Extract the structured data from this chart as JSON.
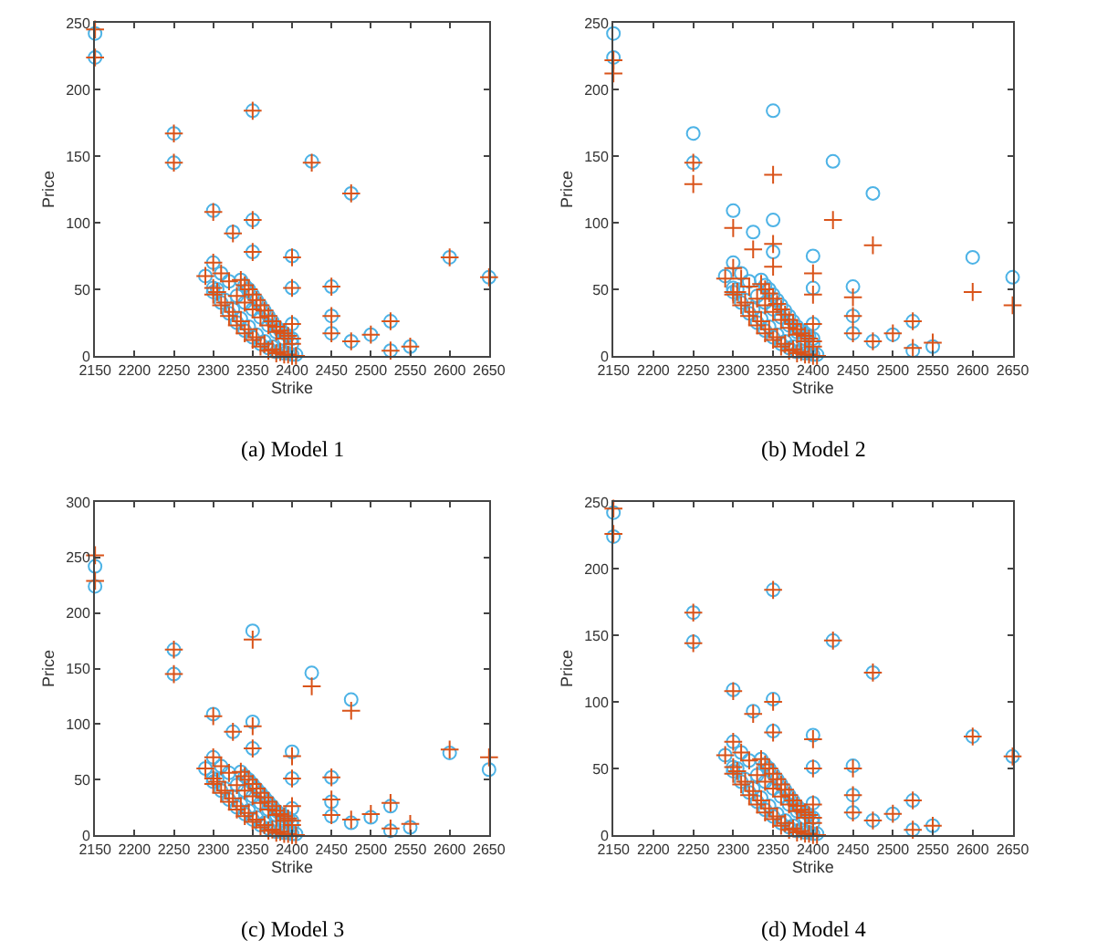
{
  "chart_data": [
    {
      "type": "scatter",
      "title": "(a) Model 1",
      "xlabel": "Strike",
      "ylabel": "Price",
      "xlim": [
        2150,
        2650
      ],
      "xticks": [
        2150,
        2200,
        2250,
        2300,
        2350,
        2400,
        2450,
        2500,
        2550,
        2600,
        2650
      ],
      "ylim": [
        0,
        250
      ],
      "yticks": [
        0,
        50,
        100,
        150,
        200,
        250
      ],
      "x": [
        2150,
        2150,
        2250,
        2250,
        2290,
        2300,
        2300,
        2300,
        2310,
        2320,
        2325,
        2350,
        2350,
        2350,
        2400,
        2400,
        2400,
        2425,
        2450,
        2450,
        2450,
        2475,
        2475,
        2500,
        2525,
        2525,
        2550,
        2600,
        2650,
        2335,
        2340,
        2345,
        2350,
        2355,
        2360,
        2365,
        2370,
        2375,
        2380,
        2385,
        2390,
        2395,
        2400,
        2330,
        2340,
        2350,
        2360,
        2370,
        2380,
        2390,
        2400,
        2300,
        2310,
        2320,
        2330,
        2340,
        2350,
        2360,
        2370,
        2380,
        2390,
        2400,
        2305,
        2315,
        2325,
        2335,
        2345,
        2355,
        2365,
        2375,
        2385,
        2395,
        2405
      ],
      "series": [
        {
          "color": "#4db3e6",
          "marker": "circle",
          "values": [
            242,
            224,
            167,
            145,
            60,
            109,
            70,
            51,
            62,
            56,
            93,
            184,
            102,
            78,
            75,
            51,
            24,
            146,
            52,
            30,
            17,
            122,
            11,
            16,
            26,
            4,
            7,
            74,
            59,
            57,
            53,
            50,
            46,
            42,
            38,
            34,
            30,
            26,
            22,
            19,
            17,
            15,
            13,
            45,
            40,
            35,
            29,
            23,
            18,
            13,
            9,
            48,
            40,
            32,
            25,
            19,
            14,
            9,
            6,
            3,
            2,
            1,
            50,
            42,
            35,
            28,
            22,
            16,
            11,
            7,
            4,
            2,
            1
          ]
        },
        {
          "color": "#d95319",
          "marker": "cross",
          "values": [
            245,
            224,
            167,
            145,
            60,
            108,
            70,
            51,
            62,
            56,
            92,
            184,
            102,
            78,
            74,
            51,
            24,
            145,
            52,
            30,
            17,
            122,
            11,
            16,
            26,
            4,
            7,
            74,
            59,
            57,
            53,
            50,
            46,
            42,
            38,
            34,
            30,
            26,
            22,
            19,
            17,
            15,
            13,
            45,
            40,
            35,
            29,
            23,
            18,
            13,
            9,
            46,
            38,
            30,
            23,
            17,
            12,
            7,
            4,
            2,
            1,
            0,
            48,
            40,
            33,
            26,
            20,
            14,
            9,
            5,
            3,
            1,
            0
          ]
        }
      ]
    },
    {
      "type": "scatter",
      "title": "(b) Model 2",
      "xlabel": "Strike",
      "ylabel": "Price",
      "xlim": [
        2150,
        2650
      ],
      "xticks": [
        2150,
        2200,
        2250,
        2300,
        2350,
        2400,
        2450,
        2500,
        2550,
        2600,
        2650
      ],
      "ylim": [
        0,
        250
      ],
      "yticks": [
        0,
        50,
        100,
        150,
        200,
        250
      ],
      "x": [
        2150,
        2150,
        2250,
        2250,
        2290,
        2300,
        2300,
        2300,
        2310,
        2320,
        2325,
        2350,
        2350,
        2350,
        2400,
        2400,
        2400,
        2425,
        2450,
        2450,
        2450,
        2475,
        2475,
        2500,
        2525,
        2525,
        2550,
        2600,
        2650,
        2335,
        2340,
        2345,
        2350,
        2355,
        2360,
        2365,
        2370,
        2375,
        2380,
        2385,
        2390,
        2395,
        2400,
        2330,
        2340,
        2350,
        2360,
        2370,
        2380,
        2390,
        2400,
        2300,
        2310,
        2320,
        2330,
        2340,
        2350,
        2360,
        2370,
        2380,
        2390,
        2400,
        2305,
        2315,
        2325,
        2335,
        2345,
        2355,
        2365,
        2375,
        2385,
        2395,
        2405
      ],
      "series": [
        {
          "color": "#4db3e6",
          "marker": "circle",
          "values": [
            242,
            224,
            167,
            145,
            60,
            109,
            70,
            51,
            62,
            56,
            93,
            184,
            102,
            78,
            75,
            51,
            24,
            146,
            52,
            30,
            17,
            122,
            11,
            16,
            26,
            4,
            7,
            74,
            59,
            57,
            53,
            50,
            46,
            42,
            38,
            34,
            30,
            26,
            22,
            19,
            17,
            15,
            13,
            45,
            40,
            35,
            29,
            23,
            18,
            13,
            9,
            48,
            40,
            32,
            25,
            19,
            14,
            9,
            6,
            3,
            2,
            1,
            50,
            42,
            35,
            28,
            22,
            16,
            11,
            7,
            4,
            2,
            1
          ]
        },
        {
          "color": "#d95319",
          "marker": "cross",
          "values": [
            212,
            222,
            145,
            129,
            58,
            96,
            66,
            48,
            58,
            52,
            80,
            136,
            84,
            67,
            62,
            46,
            24,
            102,
            44,
            30,
            17,
            83,
            11,
            17,
            26,
            6,
            10,
            48,
            38,
            54,
            50,
            47,
            43,
            39,
            35,
            31,
            27,
            24,
            20,
            17,
            15,
            13,
            11,
            43,
            38,
            33,
            27,
            21,
            16,
            11,
            7,
            46,
            38,
            30,
            23,
            17,
            12,
            7,
            4,
            2,
            1,
            0,
            48,
            40,
            33,
            26,
            20,
            14,
            9,
            5,
            3,
            1,
            0
          ]
        }
      ]
    },
    {
      "type": "scatter",
      "title": "(c) Model 3",
      "xlabel": "Strike",
      "ylabel": "Price",
      "xlim": [
        2150,
        2650
      ],
      "xticks": [
        2150,
        2200,
        2250,
        2300,
        2350,
        2400,
        2450,
        2500,
        2550,
        2600,
        2650
      ],
      "ylim": [
        0,
        300
      ],
      "yticks": [
        0,
        50,
        100,
        150,
        200,
        250,
        300
      ],
      "x": [
        2150,
        2150,
        2250,
        2250,
        2290,
        2300,
        2300,
        2300,
        2310,
        2320,
        2325,
        2350,
        2350,
        2350,
        2400,
        2400,
        2400,
        2425,
        2450,
        2450,
        2450,
        2475,
        2475,
        2500,
        2525,
        2525,
        2550,
        2600,
        2650,
        2335,
        2340,
        2345,
        2350,
        2355,
        2360,
        2365,
        2370,
        2375,
        2380,
        2385,
        2390,
        2395,
        2400,
        2330,
        2340,
        2350,
        2360,
        2370,
        2380,
        2390,
        2400,
        2300,
        2310,
        2320,
        2330,
        2340,
        2350,
        2360,
        2370,
        2380,
        2390,
        2400,
        2305,
        2315,
        2325,
        2335,
        2345,
        2355,
        2365,
        2375,
        2385,
        2395,
        2405
      ],
      "series": [
        {
          "color": "#4db3e6",
          "marker": "circle",
          "values": [
            242,
            224,
            167,
            145,
            60,
            109,
            70,
            51,
            62,
            56,
            93,
            184,
            102,
            78,
            75,
            51,
            24,
            146,
            52,
            30,
            17,
            122,
            11,
            16,
            26,
            4,
            7,
            74,
            59,
            57,
            53,
            50,
            46,
            42,
            38,
            34,
            30,
            26,
            22,
            19,
            17,
            15,
            13,
            45,
            40,
            35,
            29,
            23,
            18,
            13,
            9,
            48,
            40,
            32,
            25,
            19,
            14,
            9,
            6,
            3,
            2,
            1,
            50,
            42,
            35,
            28,
            22,
            16,
            11,
            7,
            4,
            2,
            1
          ]
        },
        {
          "color": "#d95319",
          "marker": "cross",
          "values": [
            252,
            229,
            167,
            145,
            60,
            107,
            70,
            51,
            62,
            56,
            93,
            176,
            98,
            78,
            71,
            51,
            26,
            134,
            52,
            32,
            18,
            112,
            14,
            19,
            29,
            6,
            10,
            77,
            70,
            57,
            53,
            50,
            46,
            42,
            38,
            34,
            30,
            26,
            22,
            19,
            17,
            15,
            13,
            45,
            40,
            35,
            29,
            23,
            18,
            13,
            9,
            46,
            38,
            30,
            23,
            17,
            12,
            7,
            4,
            2,
            1,
            0,
            48,
            40,
            33,
            26,
            20,
            14,
            9,
            5,
            3,
            1,
            0
          ]
        }
      ]
    },
    {
      "type": "scatter",
      "title": "(d) Model 4",
      "xlabel": "Strike",
      "ylabel": "Price",
      "xlim": [
        2150,
        2650
      ],
      "xticks": [
        2150,
        2200,
        2250,
        2300,
        2350,
        2400,
        2450,
        2500,
        2550,
        2600,
        2650
      ],
      "ylim": [
        0,
        250
      ],
      "yticks": [
        0,
        50,
        100,
        150,
        200,
        250
      ],
      "x": [
        2150,
        2150,
        2250,
        2250,
        2290,
        2300,
        2300,
        2300,
        2310,
        2320,
        2325,
        2350,
        2350,
        2350,
        2400,
        2400,
        2400,
        2425,
        2450,
        2450,
        2450,
        2475,
        2475,
        2500,
        2525,
        2525,
        2550,
        2600,
        2650,
        2335,
        2340,
        2345,
        2350,
        2355,
        2360,
        2365,
        2370,
        2375,
        2380,
        2385,
        2390,
        2395,
        2400,
        2330,
        2340,
        2350,
        2360,
        2370,
        2380,
        2390,
        2400,
        2300,
        2310,
        2320,
        2330,
        2340,
        2350,
        2360,
        2370,
        2380,
        2390,
        2400,
        2305,
        2315,
        2325,
        2335,
        2345,
        2355,
        2365,
        2375,
        2385,
        2395,
        2405
      ],
      "series": [
        {
          "color": "#4db3e6",
          "marker": "circle",
          "values": [
            242,
            224,
            167,
            145,
            60,
            109,
            70,
            51,
            62,
            56,
            93,
            184,
            102,
            78,
            75,
            51,
            24,
            146,
            52,
            30,
            17,
            122,
            11,
            16,
            26,
            4,
            7,
            74,
            59,
            57,
            53,
            50,
            46,
            42,
            38,
            34,
            30,
            26,
            22,
            19,
            17,
            15,
            13,
            45,
            40,
            35,
            29,
            23,
            18,
            13,
            9,
            48,
            40,
            32,
            25,
            19,
            14,
            9,
            6,
            3,
            2,
            1,
            50,
            42,
            35,
            28,
            22,
            16,
            11,
            7,
            4,
            2,
            1
          ]
        },
        {
          "color": "#d95319",
          "marker": "cross",
          "values": [
            245,
            226,
            167,
            144,
            60,
            108,
            70,
            51,
            62,
            56,
            91,
            184,
            100,
            77,
            72,
            50,
            23,
            146,
            50,
            30,
            17,
            122,
            11,
            16,
            26,
            4,
            7,
            74,
            59,
            57,
            53,
            50,
            46,
            42,
            38,
            34,
            30,
            26,
            22,
            19,
            17,
            15,
            13,
            45,
            40,
            35,
            29,
            23,
            18,
            13,
            9,
            46,
            38,
            30,
            23,
            17,
            12,
            7,
            4,
            2,
            1,
            0,
            48,
            40,
            33,
            26,
            20,
            14,
            9,
            5,
            3,
            1,
            0
          ]
        }
      ]
    }
  ]
}
